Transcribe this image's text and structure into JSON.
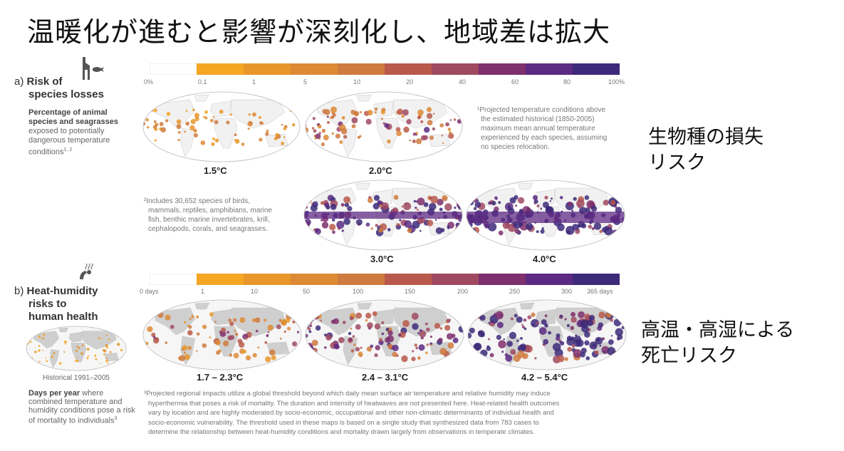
{
  "title": "温暖化が進むと影響が深刻化し、地域差は拡大",
  "panel_a": {
    "letter": "a)",
    "heading_line1": "Risk of",
    "heading_line2": "species losses",
    "desc_bold_1": "Percentage of animal",
    "desc_bold_2": "species and seagrasses",
    "desc_line_3": "exposed to potentially",
    "desc_line_4": "dangerous temperature",
    "desc_line_5": "conditions",
    "desc_sup": "1, 2",
    "scale_ticks": [
      "0%",
      "0.1",
      "1",
      "5",
      "10",
      "20",
      "40",
      "60",
      "80",
      "100%"
    ],
    "maps": [
      "1.5°C",
      "2.0°C",
      "3.0°C",
      "4.0°C"
    ],
    "note1": [
      "¹Projected temperature conditions above",
      "the estimated historical (1850-2005)",
      "maximum mean annual temperature",
      "experienced by each species, assuming",
      "no species relocation."
    ],
    "note2": [
      "²Includes 30,652 species of birds,",
      "mammals, reptiles, amphibians, marine",
      "fish, benthic marine invertebrates, krill,",
      "cephalopods, corals, and seagrasses."
    ]
  },
  "panel_b": {
    "letter": "b)",
    "heading_line1": "Heat-humidity",
    "heading_line2": "risks to",
    "heading_line3": "human health",
    "scale_ticks": [
      "0 days",
      "1",
      "10",
      "50",
      "100",
      "150",
      "200",
      "250",
      "300",
      "365 days"
    ],
    "historical_label": "Historical 1991–2005",
    "maps": [
      "1.7 – 2.3°C",
      "2.4 – 3.1°C",
      "4.2 – 5.4°C"
    ],
    "desc_bold": "Days per year",
    "desc_rest_1": " where",
    "desc_line_2": "combined temperature and",
    "desc_line_3": "humidity conditions pose a risk",
    "desc_line_4": "of mortality to individuals",
    "desc_sup": "3",
    "note3": [
      "³Projected regional impacts utilize a global threshold beyond which daily mean surface air temperature and relative humidity may induce",
      "hyperthermia that poses a risk of mortality. The duration and intensity of heatwaves are not presented here. Heat-related health outcomes",
      "vary by location and are highly moderated by socio-economic, occupational and other non-climatic determinants of individual health and",
      "socio-economic vulnerability. The threshold used in these maps is based on a single study that synthesized data from 783 cases to",
      "determine the relationship between heat-humidity conditions and mortality drawn largely from observations in temperate climates."
    ]
  },
  "callouts": {
    "species_line1": "生物種の損失",
    "species_line2": "リスク",
    "health_line1": "高温・高湿による",
    "health_line2": "死亡リスク"
  },
  "colors": {
    "scale": [
      "#ffffff",
      "#f5a623",
      "#e8962a",
      "#dd8a35",
      "#cf7a3e",
      "#b8594b",
      "#a04a62",
      "#7e2f6d",
      "#5c2a82",
      "#3d2a7a"
    ],
    "land_gray": "#cfcfcf",
    "ocean": "#f6f6f6"
  }
}
